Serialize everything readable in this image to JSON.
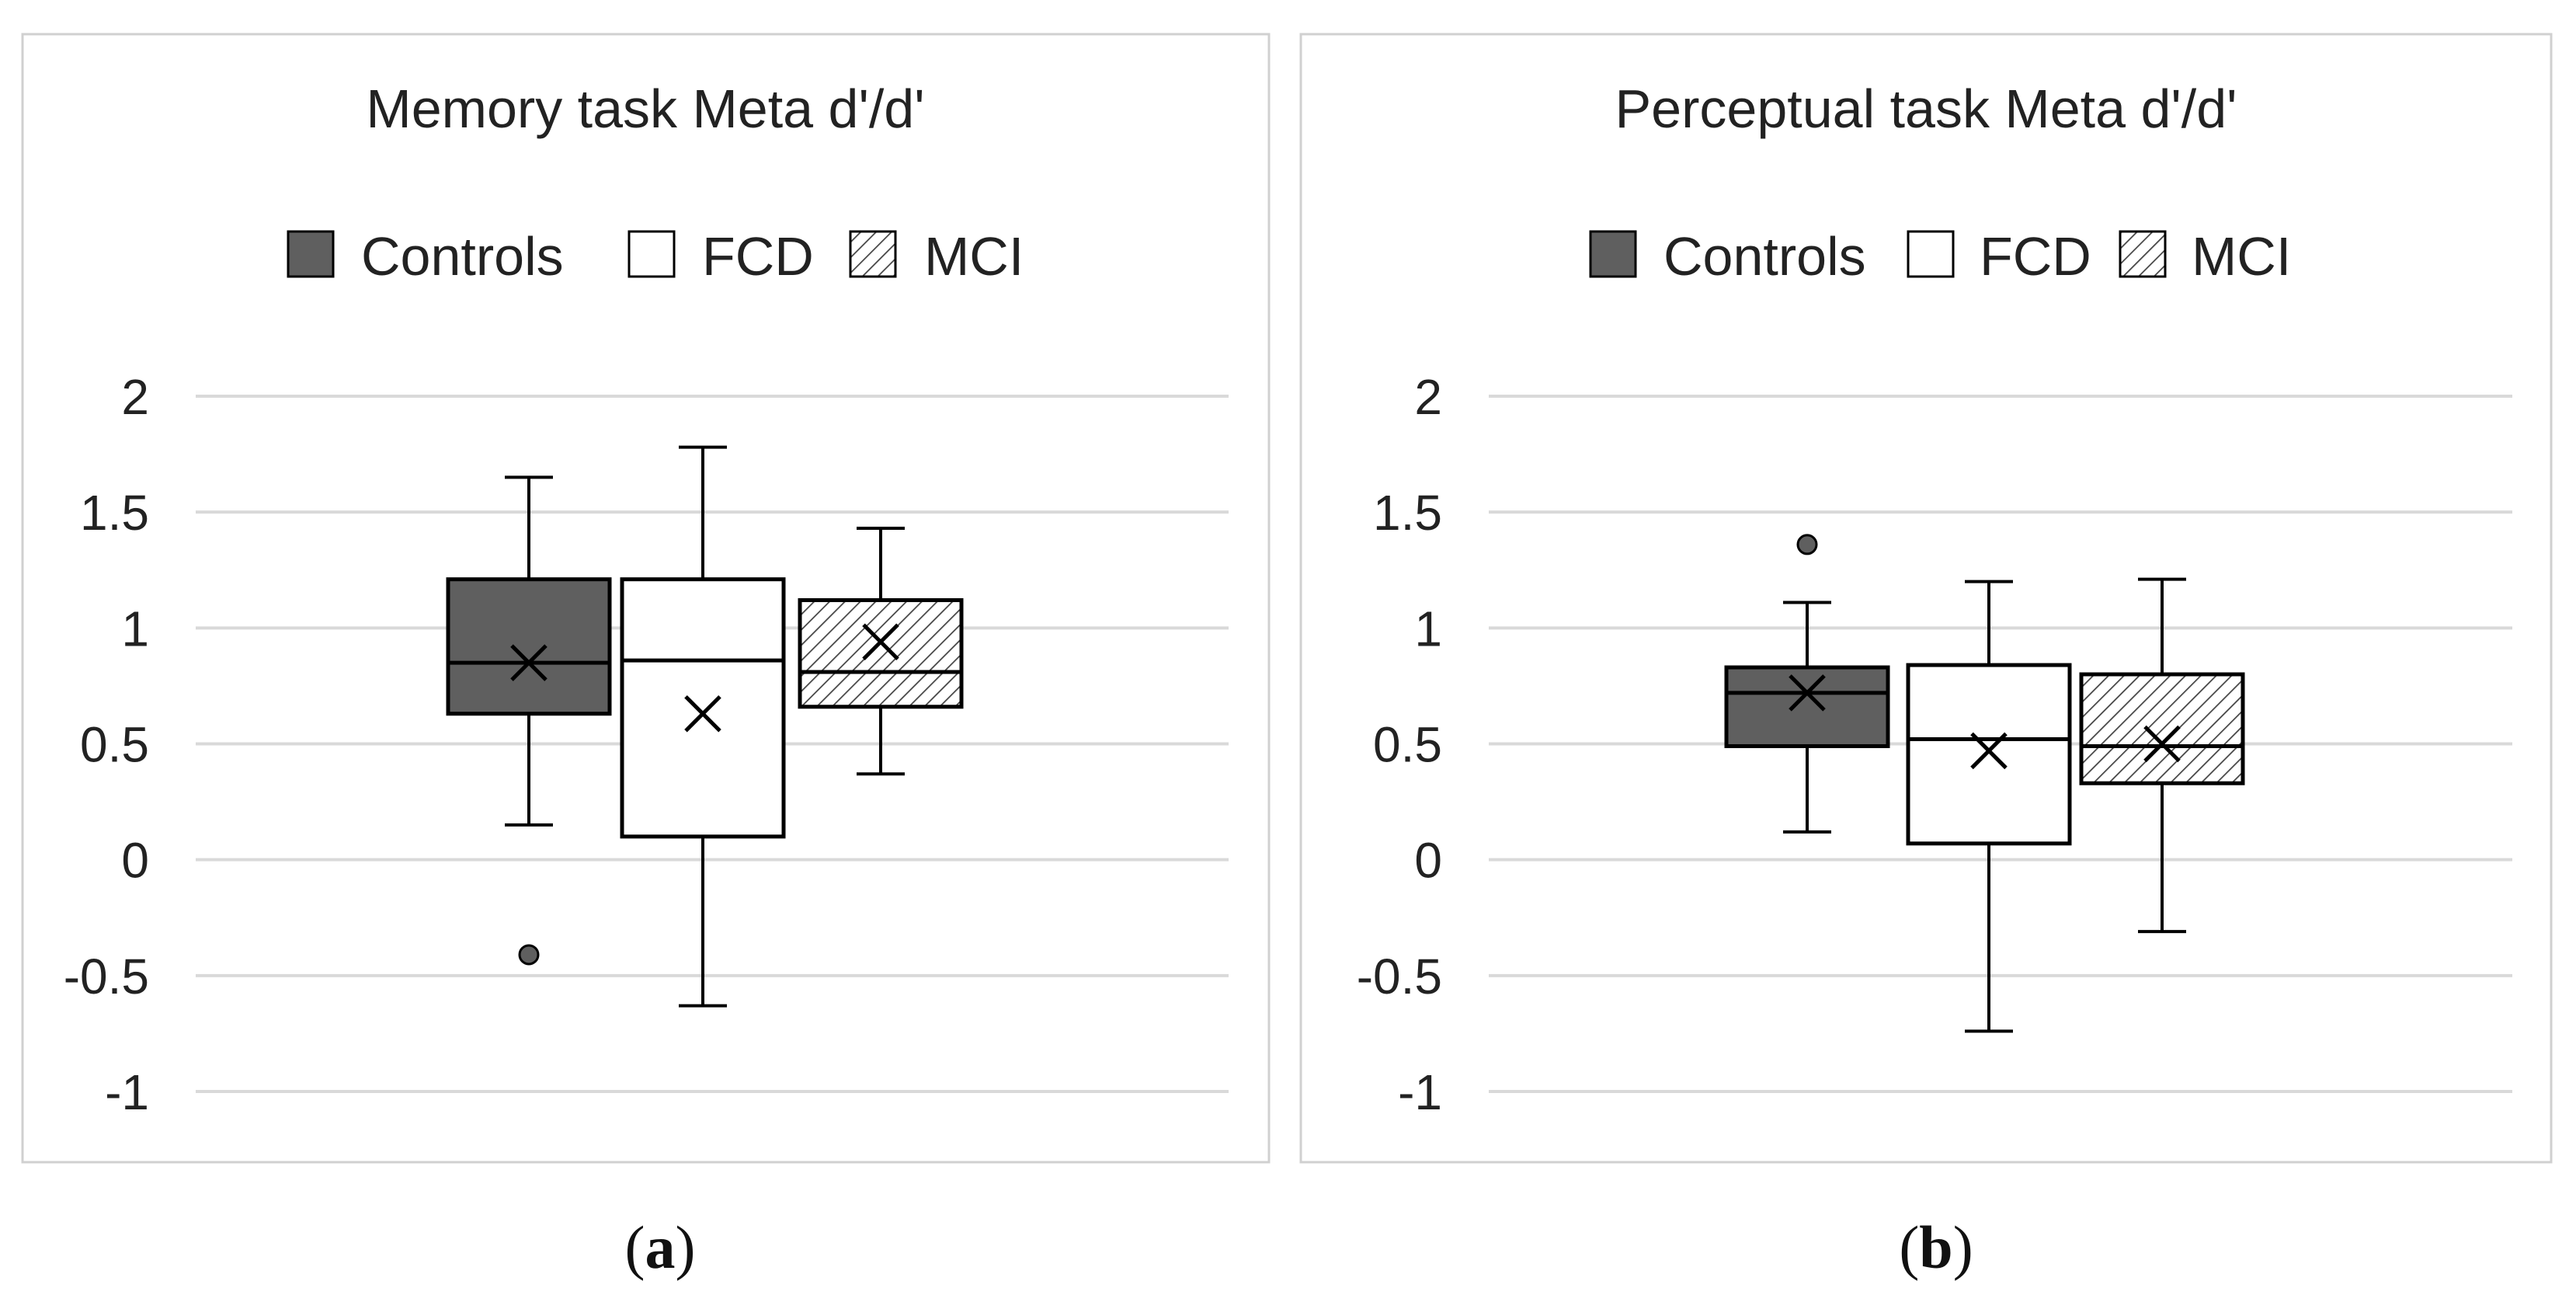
{
  "figure": {
    "legend": [
      {
        "name": "Controls",
        "style": "dark"
      },
      {
        "name": "FCD",
        "style": "white"
      },
      {
        "name": "MCI",
        "style": "hatched"
      }
    ]
  },
  "colors": {
    "controls_fill": "#5f5f5f",
    "fcd_fill": "#ffffff",
    "mci_hatch": "#444444",
    "gridline": "#d9d9d9",
    "outline": "#000000",
    "panel_border": "#d0d0d0",
    "text": "#222222"
  },
  "chart_data": [
    {
      "type": "box",
      "panel": "a",
      "panel_label": {
        "open": "(",
        "letter": "a",
        "close": ")"
      },
      "title": "Memory task Meta d'/d'",
      "ylim": [
        -1,
        2
      ],
      "yticks": [
        -1,
        -0.5,
        0,
        0.5,
        1,
        1.5,
        2
      ],
      "ytick_labels": [
        "-1",
        "-0.5",
        "0",
        "0.5",
        "1",
        "1.5",
        "2"
      ],
      "grid": true,
      "legend_position": "top",
      "series": [
        {
          "name": "Controls",
          "whisker_low": 0.15,
          "q1": 0.63,
          "median": 0.85,
          "q3": 1.21,
          "whisker_high": 1.65,
          "mean": 0.85,
          "outliers": [
            -0.41
          ]
        },
        {
          "name": "FCD",
          "whisker_low": -0.63,
          "q1": 0.1,
          "median": 0.86,
          "q3": 1.21,
          "whisker_high": 1.78,
          "mean": 0.63,
          "outliers": []
        },
        {
          "name": "MCI",
          "whisker_low": 0.37,
          "q1": 0.66,
          "median": 0.81,
          "q3": 1.12,
          "whisker_high": 1.43,
          "mean": 0.94,
          "outliers": []
        }
      ]
    },
    {
      "type": "box",
      "panel": "b",
      "panel_label": {
        "open": "(",
        "letter": "b",
        "close": ")"
      },
      "title": "Perceptual task Meta d'/d'",
      "ylim": [
        -1,
        2
      ],
      "yticks": [
        -1,
        -0.5,
        0,
        0.5,
        1,
        1.5,
        2
      ],
      "ytick_labels": [
        "-1",
        "-0.5",
        "0",
        "0.5",
        "1",
        "1.5",
        "2"
      ],
      "grid": true,
      "legend_position": "top",
      "series": [
        {
          "name": "Controls",
          "whisker_low": 0.12,
          "q1": 0.49,
          "median": 0.72,
          "q3": 0.83,
          "whisker_high": 1.11,
          "mean": 0.72,
          "outliers": [
            1.36
          ]
        },
        {
          "name": "FCD",
          "whisker_low": -0.74,
          "q1": 0.07,
          "median": 0.52,
          "q3": 0.84,
          "whisker_high": 1.2,
          "mean": 0.47,
          "outliers": []
        },
        {
          "name": "MCI",
          "whisker_low": -0.31,
          "q1": 0.33,
          "median": 0.49,
          "q3": 0.8,
          "whisker_high": 1.21,
          "mean": 0.5,
          "outliers": []
        }
      ]
    }
  ]
}
